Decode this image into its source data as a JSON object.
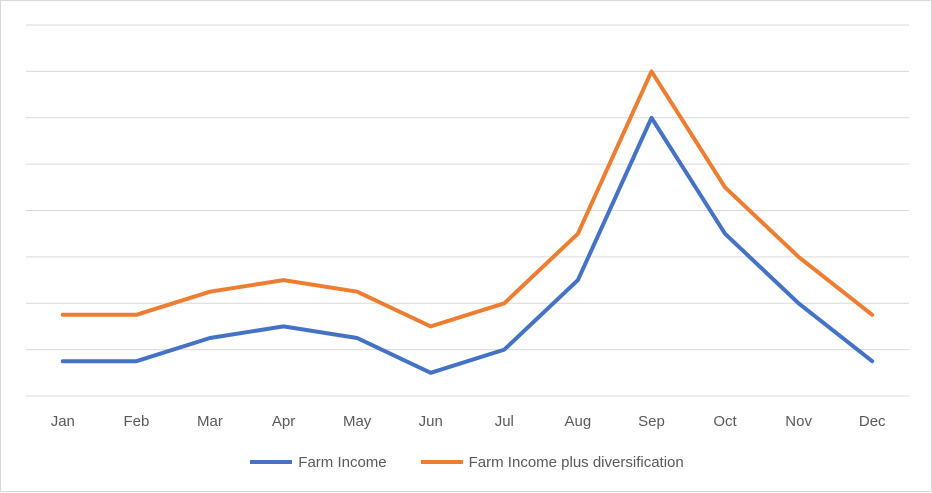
{
  "chart_data": {
    "type": "line",
    "categories": [
      "Jan",
      "Feb",
      "Mar",
      "Apr",
      "May",
      "Jun",
      "Jul",
      "Aug",
      "Sep",
      "Oct",
      "Nov",
      "Dec"
    ],
    "ylim": [
      0,
      8
    ],
    "yticks": [
      0,
      1,
      2,
      3,
      4,
      5,
      6,
      7,
      8
    ],
    "y_tick_labels_shown": false,
    "grid": true,
    "legend": "bottom",
    "series": [
      {
        "name": "Farm Income",
        "color": "#4472C4",
        "values": [
          0.75,
          0.75,
          1.25,
          1.5,
          1.25,
          0.5,
          1.0,
          2.5,
          6.0,
          3.5,
          2.0,
          0.75
        ]
      },
      {
        "name": "Farm Income plus diversification",
        "color": "#ED7D31",
        "values": [
          1.75,
          1.75,
          2.25,
          2.5,
          2.25,
          1.5,
          2.0,
          3.5,
          7.0,
          4.5,
          3.0,
          1.75
        ]
      }
    ]
  }
}
